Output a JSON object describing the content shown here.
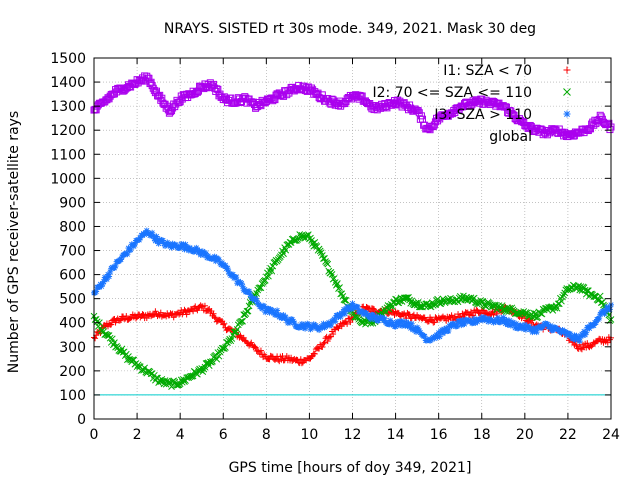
{
  "chart_data": {
    "type": "scatter",
    "title": "NRAYS. SISTED rt 30s mode. 349, 2021. Mask 30 deg",
    "xlabel": "GPS time [hours of doy 349, 2021]",
    "ylabel": "Number of GPS receiver-satellite rays",
    "xlim": [
      0,
      24
    ],
    "ylim": [
      0,
      1500
    ],
    "xticks": [
      0,
      2,
      4,
      6,
      8,
      10,
      12,
      14,
      16,
      18,
      20,
      22,
      24
    ],
    "yticks": [
      0,
      100,
      200,
      300,
      400,
      500,
      600,
      700,
      800,
      900,
      1000,
      1100,
      1200,
      1300,
      1400,
      1500
    ],
    "grid": true,
    "legend_position": "top-right",
    "threshold_line": {
      "y": 100,
      "color": "#00cccc"
    },
    "series": [
      {
        "name": "I1: SZA < 70",
        "marker": "+",
        "color": "#ff0000",
        "x": [
          0,
          0.5,
          1,
          1.5,
          2,
          2.5,
          3,
          3.5,
          4,
          4.5,
          5,
          5.3,
          5.6,
          6,
          6.5,
          7,
          7.5,
          8,
          8.5,
          9,
          9.5,
          10,
          10.5,
          11,
          11.5,
          12,
          12.5,
          13,
          13.5,
          14,
          14.5,
          15,
          15.5,
          16,
          16.5,
          17,
          17.5,
          18,
          18.5,
          19,
          19.5,
          20,
          20.5,
          21,
          21.5,
          22,
          22.5,
          23,
          23.5,
          24
        ],
        "y": [
          335,
          385,
          410,
          420,
          425,
          430,
          440,
          430,
          440,
          450,
          465,
          455,
          425,
          390,
          360,
          330,
          290,
          260,
          250,
          250,
          240,
          250,
          300,
          350,
          390,
          420,
          460,
          450,
          450,
          440,
          430,
          420,
          415,
          410,
          420,
          425,
          440,
          450,
          440,
          460,
          450,
          420,
          390,
          380,
          370,
          340,
          300,
          305,
          325,
          330
        ]
      },
      {
        "name": "I2: 70 <= SZA <= 110",
        "marker": "x",
        "color": "#00aa00",
        "x": [
          0,
          0.5,
          1,
          1.5,
          2,
          2.5,
          3,
          3.5,
          4,
          4.5,
          5,
          5.5,
          6,
          6.5,
          7,
          7.5,
          8,
          8.5,
          9,
          9.5,
          10,
          10.5,
          11,
          11.5,
          12,
          12.5,
          13,
          13.5,
          14,
          14.5,
          15,
          15.5,
          16,
          16.5,
          17,
          17.5,
          18,
          18.5,
          19,
          19.5,
          20,
          20.5,
          21,
          21.5,
          22,
          22.5,
          23,
          23.5,
          24
        ],
        "y": [
          420,
          360,
          310,
          260,
          225,
          195,
          160,
          145,
          150,
          180,
          205,
          240,
          290,
          350,
          430,
          520,
          590,
          660,
          720,
          760,
          755,
          690,
          610,
          520,
          440,
          400,
          410,
          450,
          490,
          500,
          480,
          470,
          490,
          490,
          500,
          500,
          480,
          470,
          460,
          450,
          440,
          430,
          450,
          470,
          540,
          550,
          520,
          500,
          410
        ]
      },
      {
        "name": "I3: SZA > 110",
        "marker": "*",
        "color": "#1a75ff",
        "x": [
          0,
          0.5,
          1,
          1.5,
          2,
          2.5,
          3,
          3.5,
          4,
          4.5,
          5,
          5.5,
          6,
          6.5,
          7,
          7.5,
          8,
          8.5,
          9,
          9.5,
          10,
          10.5,
          11,
          11.5,
          12,
          12.5,
          13,
          13.5,
          14,
          14.5,
          15,
          15.5,
          16,
          16.5,
          17,
          17.5,
          18,
          18.5,
          19,
          19.5,
          20,
          20.5,
          21,
          21.5,
          22,
          22.5,
          23,
          23.5,
          24
        ],
        "y": [
          520,
          580,
          640,
          690,
          740,
          780,
          740,
          720,
          720,
          710,
          690,
          670,
          640,
          590,
          540,
          490,
          450,
          440,
          410,
          390,
          385,
          380,
          400,
          440,
          470,
          440,
          420,
          410,
          395,
          400,
          370,
          330,
          350,
          380,
          400,
          400,
          420,
          410,
          410,
          390,
          380,
          370,
          390,
          370,
          350,
          330,
          380,
          430,
          470
        ]
      },
      {
        "name": "global",
        "marker": "square",
        "color": "#aa00ee",
        "x": [
          0,
          0.5,
          1,
          1.5,
          2,
          2.5,
          3,
          3.5,
          4,
          4.5,
          5,
          5.5,
          6,
          6.5,
          7,
          7.5,
          8,
          8.5,
          9,
          9.5,
          10,
          10.5,
          11,
          11.5,
          12,
          12.5,
          13,
          13.5,
          14,
          14.5,
          15,
          15.5,
          16,
          16.5,
          17,
          17.5,
          18,
          18.5,
          19,
          19.5,
          20,
          20.5,
          21,
          21.5,
          22,
          22.5,
          23,
          23.5,
          24
        ],
        "y": [
          1280,
          1320,
          1360,
          1380,
          1400,
          1420,
          1340,
          1280,
          1330,
          1350,
          1380,
          1390,
          1330,
          1320,
          1330,
          1300,
          1320,
          1340,
          1360,
          1380,
          1370,
          1340,
          1320,
          1310,
          1340,
          1330,
          1290,
          1300,
          1320,
          1300,
          1280,
          1200,
          1250,
          1270,
          1300,
          1310,
          1320,
          1310,
          1300,
          1260,
          1220,
          1200,
          1190,
          1200,
          1180,
          1190,
          1210,
          1250,
          1210
        ]
      }
    ]
  }
}
